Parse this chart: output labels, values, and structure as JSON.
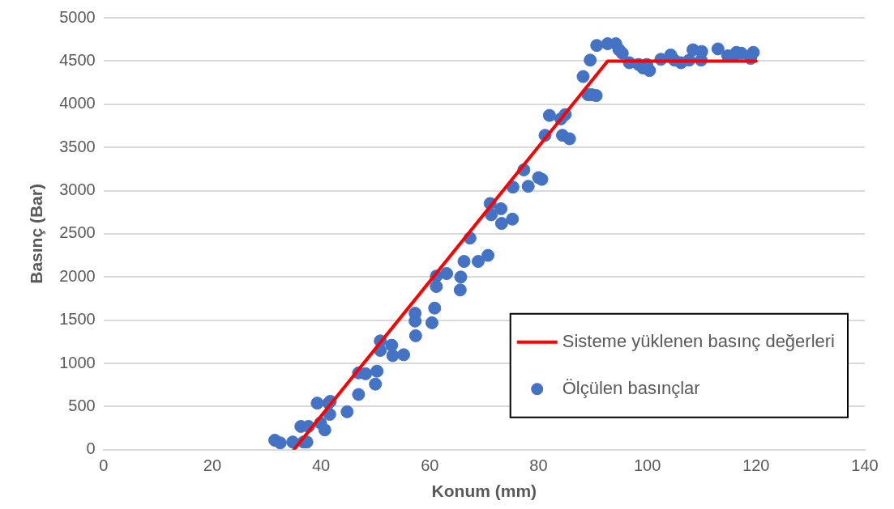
{
  "chart_data": {
    "type": "scatter",
    "xlabel": "Konum (mm)",
    "ylabel": "Basınç (Bar)",
    "xlim": [
      0,
      140
    ],
    "xticks": [
      0,
      20,
      40,
      60,
      80,
      100,
      120,
      140
    ],
    "ylim": [
      0,
      5000
    ],
    "yticks": [
      0,
      500,
      1000,
      1500,
      2000,
      2500,
      3000,
      3500,
      4000,
      4500,
      5000
    ],
    "grid": "y",
    "legend": "bottom right",
    "series": [
      {
        "name": "Sisteme yüklenen basınç değerleri",
        "type": "line",
        "color": "#ff0000",
        "marker": "none",
        "line_style": "solid",
        "x": [
          35,
          92.7,
          120
        ],
        "values": [
          0,
          4500,
          4500
        ]
      },
      {
        "name": "Ölçülen basınçlar",
        "color": "#4472c4",
        "marker": "circle",
        "x": [
          31.5,
          32.5,
          34.8,
          36.3,
          36.8,
          37.4,
          37.7,
          39.3,
          39.9,
          40.7,
          41.4,
          41.6,
          41.7,
          44.8,
          46.9,
          46.9,
          48.2,
          50,
          50.3,
          50.9,
          50.9,
          53,
          53.2,
          55.2,
          57.3,
          57.3,
          57.4,
          60.4,
          60.9,
          61.2,
          61.2,
          63.1,
          65.6,
          65.7,
          66.3,
          67.4,
          68.9,
          70.7,
          71.1,
          71.3,
          73.1,
          73.2,
          75.2,
          75.3,
          77.3,
          78.1,
          80,
          80.6,
          81.2,
          82,
          84.1,
          84.4,
          84.9,
          85.7,
          88.2,
          89.5,
          89.1,
          89.8,
          90.6,
          90.7,
          92.7,
          94.2,
          94.8,
          95.4,
          96.7,
          98.4,
          99.2,
          99.9,
          100.4,
          102.5,
          104.3,
          105,
          106.2,
          107.7,
          108.4,
          110,
          109.9,
          113,
          114.8,
          115.9,
          116.4,
          117.3,
          119,
          119.5
        ],
        "values": [
          110,
          80,
          90,
          270,
          90,
          90,
          270,
          540,
          310,
          230,
          540,
          410,
          560,
          440,
          890,
          640,
          880,
          760,
          910,
          1260,
          1150,
          1210,
          1090,
          1100,
          1580,
          1490,
          1320,
          1470,
          1640,
          2010,
          1890,
          2040,
          1850,
          2000,
          2180,
          2450,
          2180,
          2250,
          2850,
          2720,
          2790,
          2620,
          2670,
          3040,
          3240,
          3050,
          3150,
          3130,
          3640,
          3870,
          3830,
          3640,
          3880,
          3600,
          4320,
          4510,
          4110,
          4110,
          4100,
          4680,
          4700,
          4700,
          4630,
          4590,
          4480,
          4460,
          4420,
          4460,
          4390,
          4520,
          4570,
          4510,
          4480,
          4510,
          4630,
          4610,
          4510,
          4640,
          4560,
          4560,
          4600,
          4590,
          4530,
          4600
        ]
      }
    ]
  }
}
